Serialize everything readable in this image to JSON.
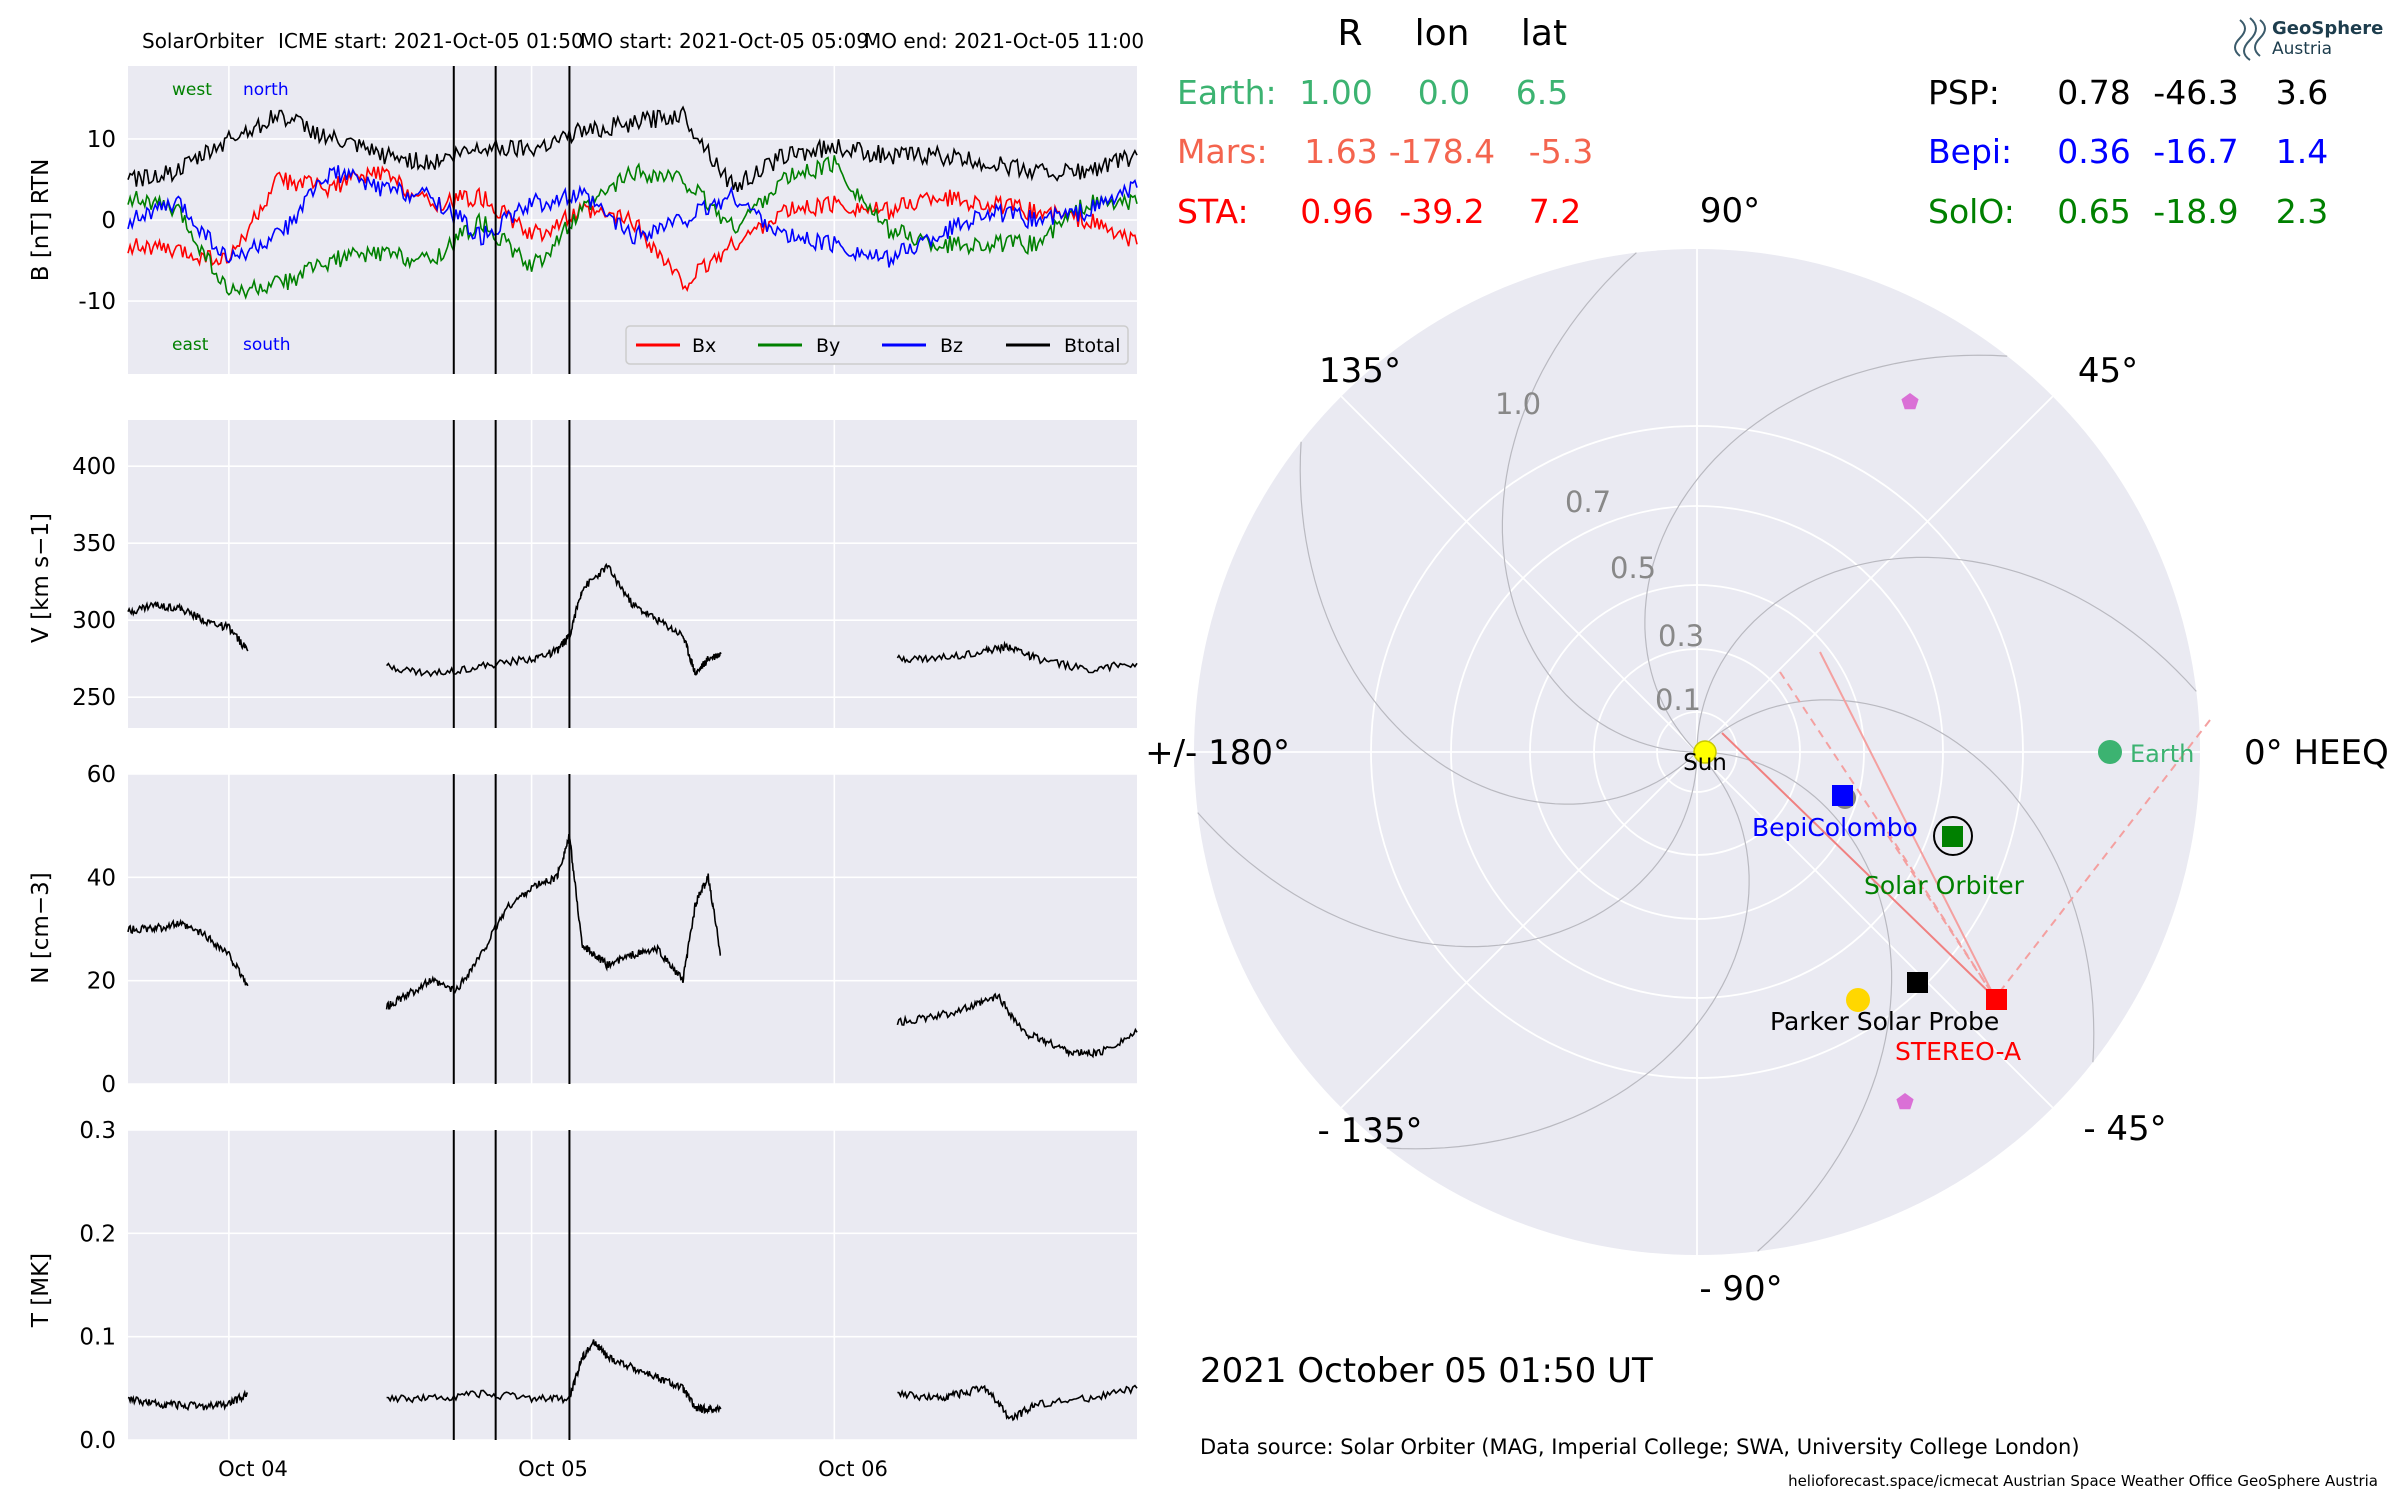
{
  "header": {
    "spacecraft": "SolarOrbiter",
    "icme_start": "ICME start: 2021-Oct-05 01:50",
    "mo_start": "MO start: 2021-Oct-05 05:09",
    "mo_end": "MO end: 2021-Oct-05 11:00"
  },
  "colors": {
    "bx": "#ff0000",
    "by": "#008000",
    "bz": "#0000ff",
    "btotal": "#000000",
    "earth": "#3cb371",
    "mars": "#f4644e",
    "sta": "#ff0000",
    "psp": "#000000",
    "bepi": "#0000ff",
    "solo": "#008000",
    "panel_bg": "#eaeaf2",
    "grid": "#ffffff"
  },
  "chart_data": [
    {
      "type": "line",
      "panel": "magnetic_field",
      "ylabel": "B [nT] RTN",
      "ylim": [
        -19,
        19
      ],
      "yticks": [
        10,
        0,
        -10
      ],
      "xlim_days_label": [
        "Oct 04",
        "Oct 05",
        "Oct 06"
      ],
      "annotations": {
        "top_left_1": "west",
        "top_left_2": "north",
        "bottom_left_1": "east",
        "bottom_left_2": "south"
      },
      "legend": [
        "Bx",
        "By",
        "Bz",
        "Btotal"
      ],
      "legend_position": "lower-right",
      "event_lines": [
        "2021-10-05 01:50",
        "2021-10-05 05:09",
        "2021-10-05 11:00"
      ],
      "series": [
        {
          "name": "Bx",
          "x_hours": [
            0,
            4,
            8,
            12,
            16,
            20,
            24,
            28,
            32,
            36,
            40,
            44,
            48,
            52,
            56,
            60,
            64,
            68,
            72,
            76,
            80
          ],
          "values": [
            -3,
            -4,
            -5,
            5,
            4,
            6,
            2,
            3,
            -2,
            1,
            0,
            -8,
            -3,
            1,
            2,
            1,
            3,
            2,
            1,
            0,
            -3
          ]
        },
        {
          "name": "By",
          "x_hours": [
            0,
            4,
            8,
            12,
            16,
            20,
            24,
            28,
            32,
            36,
            40,
            44,
            48,
            52,
            56,
            60,
            64,
            68,
            72,
            76,
            80
          ],
          "values": [
            3,
            1,
            -9,
            -8,
            -5,
            -4,
            -5,
            0,
            -6,
            1,
            6,
            5,
            -1,
            5,
            7,
            -1,
            -3,
            -3,
            -3,
            2,
            2
          ]
        },
        {
          "name": "Bz",
          "x_hours": [
            0,
            4,
            8,
            12,
            16,
            20,
            24,
            28,
            32,
            36,
            40,
            44,
            48,
            52,
            56,
            60,
            64,
            68,
            72,
            76,
            80
          ],
          "values": [
            0,
            2,
            -5,
            -2,
            6,
            4,
            3,
            -2,
            2,
            3,
            -2,
            0,
            3,
            -2,
            -3,
            -5,
            -2,
            1,
            0,
            1,
            4
          ]
        },
        {
          "name": "Btotal",
          "x_hours": [
            0,
            4,
            8,
            12,
            16,
            20,
            24,
            28,
            32,
            36,
            40,
            44,
            48,
            52,
            56,
            60,
            64,
            68,
            72,
            76,
            80
          ],
          "values": [
            5,
            6,
            10,
            13,
            10,
            8,
            7,
            9,
            9,
            11,
            12,
            13,
            4,
            8,
            9,
            8,
            8,
            7,
            6,
            6,
            8
          ]
        }
      ]
    },
    {
      "type": "line",
      "panel": "speed",
      "ylabel": "V [km s−1]",
      "ylim": [
        230,
        430
      ],
      "yticks": [
        400,
        350,
        300,
        250
      ],
      "segments": [
        {
          "x_hours": [
            0,
            2,
            4,
            6,
            8,
            9.5
          ],
          "values": [
            305,
            310,
            308,
            300,
            295,
            280
          ]
        },
        {
          "x_hours": [
            20.5,
            24,
            28,
            32,
            34,
            35,
            36,
            38,
            40,
            42,
            44,
            45,
            46,
            47
          ],
          "values": [
            270,
            265,
            270,
            275,
            280,
            290,
            320,
            335,
            310,
            300,
            290,
            265,
            275,
            278
          ]
        },
        {
          "x_hours": [
            61,
            64,
            68,
            70,
            72,
            76,
            80
          ],
          "values": [
            275,
            275,
            280,
            283,
            275,
            268,
            272
          ]
        }
      ]
    },
    {
      "type": "line",
      "panel": "density",
      "ylabel": "N [cm−3]",
      "ylim": [
        0,
        60
      ],
      "yticks": [
        60,
        40,
        20,
        0
      ],
      "segments": [
        {
          "x_hours": [
            0,
            2,
            4,
            6,
            8,
            9.5
          ],
          "values": [
            30,
            30,
            31,
            29,
            25,
            19
          ]
        },
        {
          "x_hours": [
            20.5,
            22,
            24,
            26,
            28,
            30,
            32,
            34,
            35,
            36,
            37,
            38,
            40,
            42,
            44,
            45,
            46,
            47
          ],
          "values": [
            15,
            17,
            20,
            18,
            25,
            34,
            38,
            40,
            48,
            27,
            25,
            23,
            25,
            26,
            20,
            35,
            40,
            25
          ]
        },
        {
          "x_hours": [
            61,
            64,
            67,
            69,
            71,
            73,
            75,
            77,
            80
          ],
          "values": [
            12,
            13,
            15,
            17,
            10,
            8,
            6,
            6,
            10
          ]
        }
      ]
    },
    {
      "type": "line",
      "panel": "temperature",
      "ylabel": "T [MK]",
      "ylim": [
        0,
        0.3
      ],
      "yticks": [
        0.3,
        0.2,
        0.1,
        0.0
      ],
      "segments": [
        {
          "x_hours": [
            0,
            2,
            4,
            6,
            8,
            9.5
          ],
          "values": [
            0.04,
            0.035,
            0.034,
            0.032,
            0.035,
            0.045
          ]
        },
        {
          "x_hours": [
            20.5,
            24,
            28,
            32,
            35,
            36,
            37,
            38,
            40,
            42,
            44,
            45,
            46,
            47
          ],
          "values": [
            0.04,
            0.04,
            0.045,
            0.04,
            0.04,
            0.08,
            0.095,
            0.08,
            0.07,
            0.06,
            0.05,
            0.03,
            0.03,
            0.03
          ]
        },
        {
          "x_hours": [
            61,
            64,
            66,
            68,
            70,
            72,
            76,
            80
          ],
          "values": [
            0.045,
            0.04,
            0.045,
            0.05,
            0.02,
            0.035,
            0.04,
            0.05
          ]
        }
      ]
    },
    {
      "type": "scatter",
      "panel": "polar_position",
      "rticks": [
        "0.1",
        "0.3",
        "0.5",
        "0.7",
        "1.0"
      ],
      "angle_labels": {
        "a90": "90°",
        "a45": "45°",
        "a0": "0° HEEQ",
        "am45": "- 45°",
        "am90": "- 90°",
        "am135": "- 135°",
        "a180": "+/- 180°",
        "a135": "135°"
      },
      "bodies": [
        {
          "name": "Sun",
          "r": 0.0,
          "lon": 0.0
        },
        {
          "name": "Earth",
          "r": 1.0,
          "lon": 0.0
        },
        {
          "name": "BepiColombo",
          "r": 0.36,
          "lon": -16.7
        },
        {
          "name": "Solar Orbiter",
          "r": 0.65,
          "lon": -18.9
        },
        {
          "name": "Parker Solar Probe",
          "r": 0.78,
          "lon": -46.3
        },
        {
          "name": "STEREO-A",
          "r": 0.96,
          "lon": -39.2
        }
      ]
    }
  ],
  "positions_table": {
    "headers": [
      "R",
      "lon",
      "lat"
    ],
    "left": [
      {
        "name": "Earth:",
        "r": "1.00",
        "lon": "0.0",
        "lat": "6.5"
      },
      {
        "name": "Mars:",
        "r": "1.63",
        "lon": "-178.4",
        "lat": "-5.3"
      },
      {
        "name": "STA:",
        "r": "0.96",
        "lon": "-39.2",
        "lat": "7.2"
      }
    ],
    "right": [
      {
        "name": "PSP:",
        "r": "0.78",
        "lon": "-46.3",
        "lat": "3.6"
      },
      {
        "name": "Bepi:",
        "r": "0.36",
        "lon": "-16.7",
        "lat": "1.4"
      },
      {
        "name": "SolO:",
        "r": "0.65",
        "lon": "-18.9",
        "lat": "2.3"
      }
    ]
  },
  "polar_labels": {
    "sun": "Sun",
    "earth": "Earth",
    "bepi": "BepiColombo",
    "solo": "Solar Orbiter",
    "psp": "Parker Solar Probe",
    "sta": "STEREO-A"
  },
  "logo": {
    "line1": "GeoSphere",
    "line2": "Austria"
  },
  "datetime": "2021 October 05  01:50 UT",
  "footer": {
    "source": "Data source: Solar Orbiter (MAG, Imperial College; SWA, University College London)",
    "credits": "helioforecast.space/icmecat   Austrian Space Weather Office   GeoSphere Austria"
  }
}
